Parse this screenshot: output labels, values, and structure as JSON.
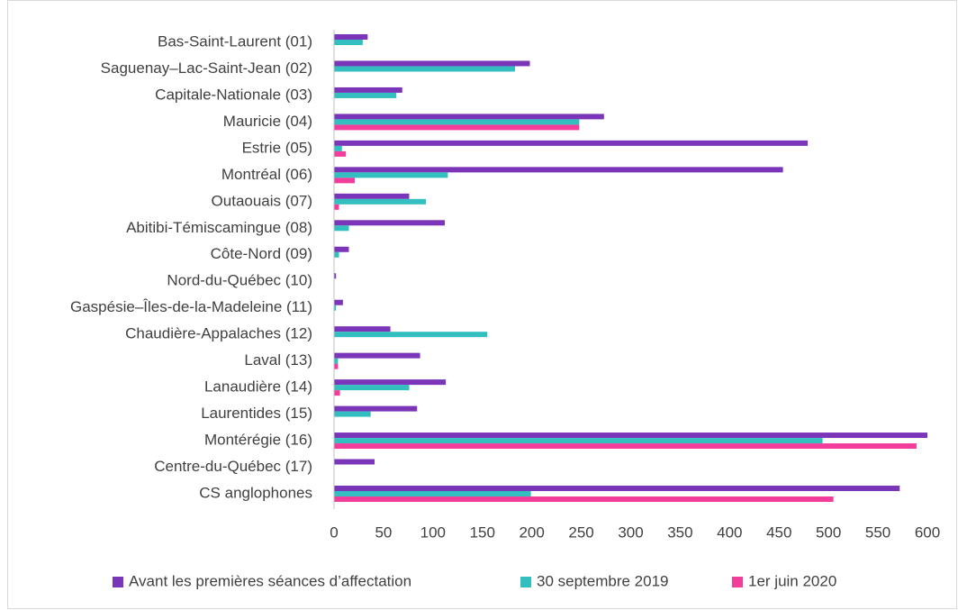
{
  "chart_data": {
    "type": "bar",
    "orientation": "horizontal",
    "categories": [
      "Bas-Saint-Laurent (01)",
      "Saguenay–Lac-Saint-Jean (02)",
      "Capitale-Nationale (03)",
      "Mauricie (04)",
      "Estrie (05)",
      "Montréal (06)",
      "Outaouais (07)",
      "Abitibi-Témiscamingue (08)",
      "Côte-Nord (09)",
      "Nord-du-Québec (10)",
      "Gaspésie–Îles-de-la-Madeleine (11)",
      "Chaudière-Appalaches (12)",
      "Laval (13)",
      "Lanaudière (14)",
      "Laurentides (15)",
      "Montérégie (16)",
      "Centre-du-Québec (17)",
      "CS anglophones"
    ],
    "series": [
      {
        "name": "Avant les premières séances d’affectation",
        "color": "#7a35b8",
        "values": [
          34,
          198,
          69,
          273,
          479,
          454,
          76,
          112,
          15,
          2,
          9,
          57,
          87,
          113,
          84,
          600,
          41,
          572
        ]
      },
      {
        "name": "30 septembre 2019",
        "color": "#33bfbf",
        "values": [
          29,
          183,
          63,
          248,
          8,
          115,
          93,
          15,
          5,
          0,
          2,
          155,
          4,
          76,
          37,
          494,
          0,
          199
        ]
      },
      {
        "name": "1er juin 2020",
        "color": "#f23d9b",
        "values": [
          0,
          0,
          0,
          248,
          12,
          21,
          5,
          0,
          0,
          0,
          0,
          0,
          4,
          6,
          0,
          589,
          0,
          505
        ]
      }
    ],
    "xlim": [
      0,
      600
    ],
    "xticks": [
      0,
      50,
      100,
      150,
      200,
      250,
      300,
      350,
      400,
      450,
      500,
      550,
      600
    ],
    "grid": false,
    "legend": "bottom"
  }
}
